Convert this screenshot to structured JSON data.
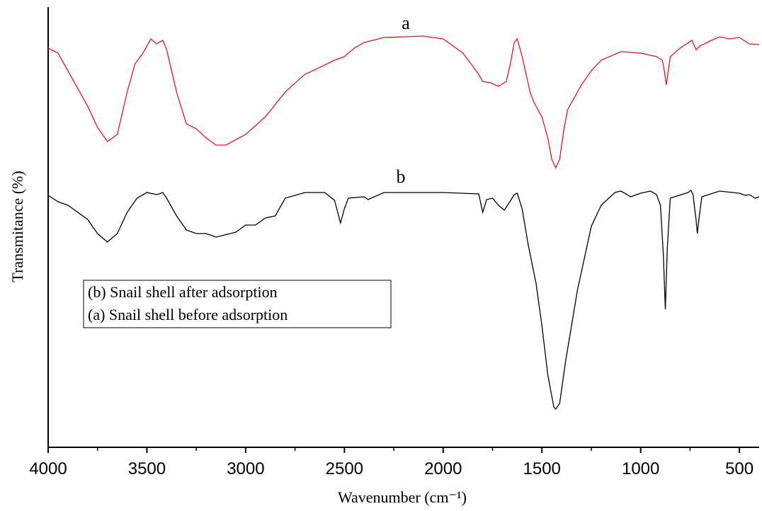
{
  "chart_data": {
    "type": "line",
    "xlabel": "Wavenumber (cm⁻¹)",
    "ylabel": "Transmitance (%)",
    "xlim": [
      4000,
      400
    ],
    "ylim": [
      0,
      622
    ],
    "xticks": [
      4000,
      3500,
      3000,
      2500,
      2000,
      1500,
      1000,
      500
    ],
    "xticks_minor": [
      3750,
      3250,
      2750,
      2250,
      1750,
      1250,
      750
    ],
    "annotations": [
      "a",
      "b"
    ],
    "series": [
      {
        "name": "(b) Snail shell after adsorption",
        "color": "#000000",
        "x": [
          4000,
          3950,
          3900,
          3800,
          3750,
          3700,
          3650,
          3600,
          3550,
          3500,
          3450,
          3420,
          3400,
          3350,
          3300,
          3250,
          3200,
          3150,
          3050,
          3000,
          2950,
          2900,
          2850,
          2800,
          2700,
          2600,
          2550,
          2520,
          2500,
          2480,
          2400,
          2380,
          2300,
          2000,
          1820,
          1800,
          1780,
          1750,
          1720,
          1690,
          1640,
          1625,
          1600,
          1570,
          1530,
          1500,
          1470,
          1440,
          1430,
          1410,
          1380,
          1320,
          1250,
          1200,
          1130,
          1100,
          1050,
          1000,
          950,
          920,
          900,
          885,
          875,
          865,
          850,
          760,
          745,
          735,
          720,
          713,
          705,
          690,
          600,
          500,
          470,
          450,
          420,
          400
        ],
        "values": [
          356,
          347,
          342,
          322,
          302,
          290,
          302,
          332,
          352,
          360,
          357,
          360,
          352,
          327,
          307,
          302,
          302,
          297,
          304,
          314,
          314,
          324,
          327,
          352,
          360,
          360,
          349,
          317,
          337,
          352,
          354,
          350,
          360,
          360,
          358,
          332,
          350,
          352,
          342,
          335,
          357,
          359,
          337,
          287,
          232,
          172,
          102,
          57,
          54,
          62,
          122,
          222,
          312,
          342,
          360,
          362,
          354,
          359,
          362,
          357,
          342,
          272,
          195,
          282,
          352,
          360,
          363,
          357,
          322,
          302,
          322,
          354,
          362,
          359,
          356,
          357,
          352,
          354
        ]
      },
      {
        "name": "(a) Snail shell before adsorption",
        "color": "#e8141c",
        "x": [
          4000,
          3950,
          3900,
          3800,
          3750,
          3700,
          3650,
          3600,
          3560,
          3520,
          3480,
          3450,
          3420,
          3400,
          3350,
          3300,
          3250,
          3200,
          3150,
          3100,
          3000,
          2900,
          2800,
          2700,
          2600,
          2550,
          2500,
          2450,
          2400,
          2300,
          2200,
          2100,
          2000,
          1900,
          1820,
          1800,
          1760,
          1720,
          1680,
          1660,
          1640,
          1625,
          1600,
          1560,
          1540,
          1500,
          1470,
          1450,
          1430,
          1410,
          1390,
          1370,
          1300,
          1250,
          1200,
          1100,
          1000,
          920,
          890,
          880,
          870,
          860,
          850,
          800,
          740,
          720,
          700,
          650,
          600,
          550,
          500,
          450,
          400
        ],
        "values": [
          564,
          557,
          532,
          482,
          452,
          432,
          442,
          502,
          542,
          557,
          577,
          570,
          575,
          562,
          502,
          457,
          450,
          437,
          427,
          427,
          442,
          467,
          502,
          527,
          540,
          547,
          552,
          564,
          572,
          579,
          580,
          581,
          577,
          557,
          527,
          517,
          515,
          510,
          517,
          542,
          572,
          577,
          552,
          502,
          487,
          467,
          437,
          407,
          395,
          407,
          447,
          477,
          512,
          532,
          547,
          559,
          557,
          552,
          547,
          532,
          512,
          532,
          552,
          564,
          575,
          562,
          567,
          574,
          580,
          577,
          579,
          570,
          569
        ]
      }
    ]
  }
}
